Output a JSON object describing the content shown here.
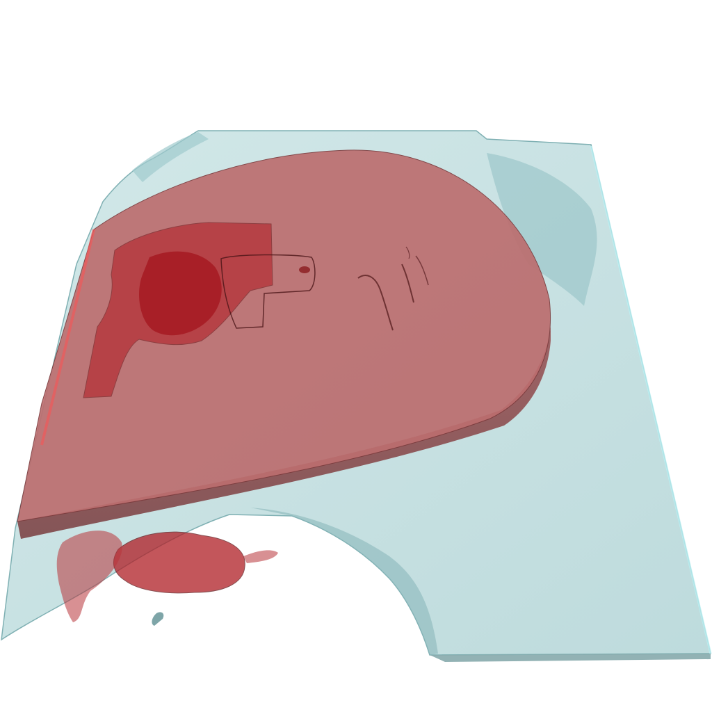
{
  "viewport": {
    "background": "#ffffff"
  },
  "rendering": {
    "type": "3d-volume-rendering",
    "outer_volume": {
      "color": "#a9d2d4",
      "edge_color": "#6fa4a8",
      "opacity": 0.55
    },
    "main_structure": {
      "color": "#bb6f70",
      "edge_color": "#7a3a3c",
      "opacity": 0.9
    },
    "dense_regions": {
      "color": "#b01e25",
      "opacity": 0.75
    }
  }
}
